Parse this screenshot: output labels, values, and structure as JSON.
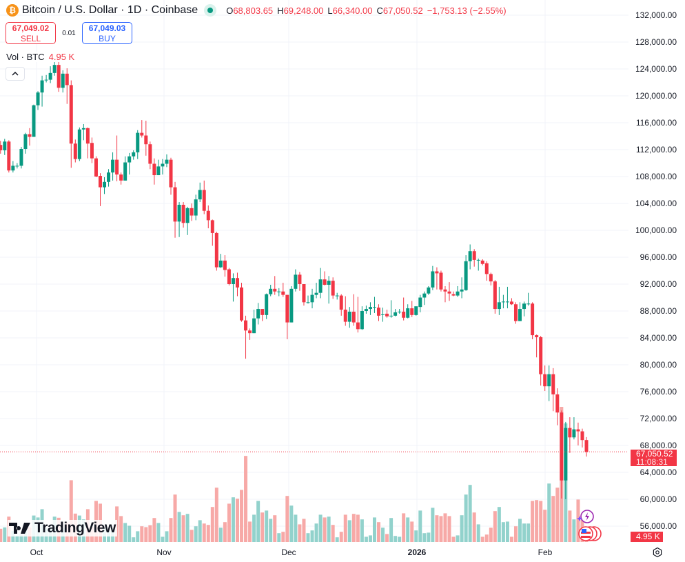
{
  "header": {
    "symbol_title": "Bitcoin / U.S. Dollar · 1D · Coinbase",
    "coin_glyph": "₿",
    "ohlc": [
      {
        "key": "O",
        "value": "68,803.65"
      },
      {
        "key": "H",
        "value": "69,248.00"
      },
      {
        "key": "L",
        "value": "66,340.00"
      },
      {
        "key": "C",
        "value": "67,050.52"
      }
    ],
    "change": "−1,753.13 (−2.55%)",
    "market_status": "open"
  },
  "trade": {
    "sell_price": "67,049.02",
    "sell_label": "SELL",
    "spread": "0.01",
    "buy_price": "67,049.03",
    "buy_label": "BUY"
  },
  "volume_legend": {
    "label": "Vol · BTC",
    "value": "4.95 K"
  },
  "price_badge": {
    "price": "67,050.52",
    "countdown": "11:08:31"
  },
  "volume_badge": "4.95 K",
  "logo_text": "TradingView",
  "icons": {
    "collapse": "chevron-up-icon",
    "settings": "settings-gear-icon",
    "events": [
      "lightning-event-icon",
      "us-flag-event-icon"
    ]
  },
  "colors": {
    "up": "#089981",
    "down": "#f23645",
    "up_volume": "#92d2cc",
    "down_volume": "#f7a9a7",
    "accent_buy": "#2962ff",
    "coin": "#f7931a"
  },
  "chart_data": {
    "type": "candlestick",
    "title": "Bitcoin / U.S. Dollar · 1D · Coinbase",
    "x_tick_labels": [
      "Oct",
      "Nov",
      "Dec",
      "2026",
      "Feb"
    ],
    "y_tick_labels": [
      "132,000.00",
      "128,000.00",
      "124,000.00",
      "120,000.00",
      "116,000.00",
      "112,000.00",
      "108,000.00",
      "104,000.00",
      "100,000.00",
      "96,000.00",
      "92,000.00",
      "88,000.00",
      "84,000.00",
      "80,000.00",
      "76,000.00",
      "72,000.00",
      "68,000.00",
      "64,000.00",
      "60,000.00",
      "56,000.00"
    ],
    "ylim": [
      56000,
      132000
    ],
    "grid": true,
    "last_price": 67050.52,
    "volume_unit": "K BTC",
    "fields": [
      "open",
      "high",
      "low",
      "close",
      "volume_k"
    ],
    "candles": [
      [
        115100,
        115500,
        112300,
        112700,
        8.8
      ],
      [
        112700,
        113300,
        111400,
        111900,
        4.8
      ],
      [
        111900,
        113600,
        111200,
        113200,
        5.3
      ],
      [
        113200,
        113400,
        108600,
        108900,
        9.2
      ],
      [
        108900,
        110300,
        108600,
        109600,
        4.0
      ],
      [
        109600,
        110000,
        109200,
        109600,
        2.3
      ],
      [
        109600,
        112400,
        109200,
        112100,
        2.8
      ],
      [
        112100,
        114500,
        111400,
        114300,
        5.8
      ],
      [
        114300,
        115200,
        112600,
        113900,
        5.3
      ],
      [
        113900,
        118700,
        113900,
        118600,
        9.6
      ],
      [
        118600,
        120700,
        117900,
        120500,
        8.9
      ],
      [
        120500,
        123000,
        118400,
        122300,
        11.9
      ],
      [
        122300,
        123100,
        122000,
        122400,
        5.0
      ],
      [
        122400,
        124400,
        121900,
        123400,
        5.0
      ],
      [
        123400,
        126200,
        123000,
        124600,
        9.2
      ],
      [
        124600,
        126100,
        120600,
        121200,
        8.8
      ],
      [
        121200,
        123800,
        120500,
        123300,
        5.0
      ],
      [
        123300,
        124100,
        118800,
        121600,
        7.1
      ],
      [
        121600,
        122300,
        109300,
        112900,
        22.4
      ],
      [
        112900,
        113500,
        110100,
        110600,
        10.3
      ],
      [
        110600,
        115300,
        110300,
        115000,
        9.6
      ],
      [
        115000,
        115800,
        113400,
        115200,
        8.2
      ],
      [
        115200,
        115300,
        110700,
        112900,
        11.9
      ],
      [
        113000,
        113800,
        110000,
        110700,
        5.4
      ],
      [
        110700,
        111000,
        107900,
        108000,
        14.9
      ],
      [
        108100,
        108500,
        103600,
        106400,
        13.9
      ],
      [
        106400,
        107900,
        105400,
        107200,
        5.0
      ],
      [
        107200,
        109100,
        106500,
        108600,
        4.0
      ],
      [
        108600,
        111600,
        107400,
        110500,
        5.0
      ],
      [
        110500,
        114100,
        107300,
        108300,
        12.9
      ],
      [
        108300,
        108600,
        106800,
        107400,
        9.4
      ],
      [
        107400,
        111000,
        107400,
        110100,
        6.9
      ],
      [
        110100,
        111500,
        108300,
        111000,
        5.9
      ],
      [
        111000,
        111900,
        110500,
        111600,
        1.7
      ],
      [
        111600,
        114900,
        110600,
        114500,
        3.9
      ],
      [
        114500,
        116400,
        113800,
        114100,
        5.7
      ],
      [
        114100,
        116300,
        111100,
        112800,
        5.4
      ],
      [
        112800,
        113200,
        109100,
        109900,
        6.1
      ],
      [
        109900,
        110700,
        106800,
        108200,
        8.7
      ],
      [
        108200,
        110500,
        108200,
        109500,
        6.9
      ],
      [
        109500,
        110600,
        108300,
        109900,
        1.9
      ],
      [
        109900,
        111300,
        109400,
        110500,
        3.9
      ],
      [
        110500,
        110800,
        105300,
        106400,
        8.7
      ],
      [
        106400,
        107200,
        98900,
        101300,
        17.2
      ],
      [
        101300,
        104200,
        99000,
        103800,
        10.9
      ],
      [
        103800,
        104200,
        100400,
        101100,
        9.7
      ],
      [
        101100,
        103500,
        99300,
        103300,
        10.2
      ],
      [
        103300,
        104000,
        101400,
        102200,
        4.4
      ],
      [
        102200,
        105300,
        101500,
        104600,
        5.7
      ],
      [
        104600,
        107100,
        104200,
        106000,
        7.9
      ],
      [
        106000,
        107400,
        102400,
        102900,
        6.7
      ],
      [
        102900,
        103700,
        100300,
        101500,
        6.2
      ],
      [
        101500,
        101600,
        97700,
        99600,
        12.7
      ],
      [
        99600,
        99800,
        94000,
        94500,
        19.7
      ],
      [
        94500,
        96500,
        94400,
        95500,
        5.2
      ],
      [
        95500,
        96300,
        93100,
        94100,
        7.2
      ],
      [
        94200,
        94400,
        91800,
        92000,
        13.9
      ],
      [
        92000,
        93600,
        89400,
        92900,
        16.2
      ],
      [
        92900,
        93700,
        90200,
        91500,
        15.7
      ],
      [
        91500,
        92200,
        86400,
        86600,
        18.9
      ],
      [
        86600,
        87300,
        80900,
        85100,
        31.2
      ],
      [
        85100,
        85400,
        83700,
        84700,
        7.4
      ],
      [
        84700,
        88200,
        84700,
        86900,
        9.9
      ],
      [
        86900,
        89200,
        86000,
        88300,
        14.9
      ],
      [
        88300,
        88300,
        86500,
        87400,
        10.7
      ],
      [
        87400,
        90600,
        86800,
        90500,
        11.4
      ],
      [
        90500,
        91900,
        90200,
        91300,
        8.4
      ],
      [
        91300,
        93200,
        90400,
        90900,
        9.7
      ],
      [
        90900,
        91400,
        90200,
        90900,
        3.2
      ],
      [
        90900,
        92200,
        90100,
        90400,
        3.7
      ],
      [
        90400,
        90400,
        83800,
        86300,
        16.7
      ],
      [
        86300,
        91700,
        86300,
        91300,
        13.2
      ],
      [
        91300,
        94200,
        90900,
        93400,
        9.9
      ],
      [
        93400,
        93800,
        91000,
        92000,
        6.4
      ],
      [
        92000,
        92000,
        88800,
        89300,
        8.4
      ],
      [
        89300,
        90300,
        89100,
        89300,
        3.2
      ],
      [
        89300,
        91300,
        88400,
        90400,
        4.2
      ],
      [
        90400,
        92200,
        89900,
        90700,
        6.7
      ],
      [
        90700,
        94400,
        89900,
        92700,
        9.9
      ],
      [
        92700,
        93900,
        91800,
        91900,
        8.9
      ],
      [
        91900,
        93200,
        89100,
        92500,
        9.2
      ],
      [
        92500,
        93000,
        89800,
        90300,
        6.2
      ],
      [
        90300,
        90700,
        89700,
        90300,
        1.7
      ],
      [
        90300,
        90500,
        87300,
        88200,
        3.7
      ],
      [
        88200,
        90200,
        85800,
        86400,
        9.9
      ],
      [
        86400,
        88600,
        85500,
        87900,
        7.9
      ],
      [
        87900,
        90500,
        85800,
        86300,
        10.2
      ],
      [
        86300,
        90100,
        84800,
        85300,
        9.9
      ],
      [
        85300,
        88700,
        85200,
        88000,
        8.2
      ],
      [
        88000,
        88800,
        87600,
        88300,
        1.9
      ],
      [
        88300,
        89300,
        87400,
        88600,
        2.4
      ],
      [
        88600,
        90100,
        87700,
        88600,
        8.9
      ],
      [
        88500,
        89000,
        86500,
        87300,
        7.2
      ],
      [
        87500,
        88500,
        86400,
        87500,
        5.2
      ],
      [
        87600,
        88200,
        87000,
        87200,
        2.9
      ],
      [
        87200,
        89600,
        87000,
        87300,
        8.7
      ],
      [
        87300,
        88300,
        87200,
        87800,
        2.2
      ],
      [
        87800,
        88300,
        87600,
        87900,
        1.9
      ],
      [
        87900,
        90000,
        86600,
        87000,
        10.4
      ],
      [
        87000,
        89000,
        86900,
        88400,
        8.9
      ],
      [
        88400,
        89500,
        87100,
        87400,
        7.4
      ],
      [
        87400,
        88600,
        87300,
        88700,
        4.2
      ],
      [
        88600,
        90400,
        87800,
        90000,
        11.4
      ],
      [
        90000,
        90900,
        88900,
        90600,
        3.2
      ],
      [
        90600,
        91700,
        90400,
        91500,
        3.4
      ],
      [
        91500,
        94700,
        91100,
        93900,
        12.4
      ],
      [
        93900,
        94500,
        91200,
        93600,
        9.7
      ],
      [
        93700,
        94000,
        90900,
        91200,
        9.4
      ],
      [
        91200,
        91700,
        89300,
        90900,
        10.4
      ],
      [
        90900,
        92300,
        89500,
        90600,
        9.4
      ],
      [
        90500,
        90900,
        90200,
        90300,
        1.9
      ],
      [
        90300,
        91700,
        90100,
        90900,
        2.4
      ],
      [
        90900,
        93000,
        89900,
        91200,
        9.7
      ],
      [
        91100,
        96300,
        91000,
        95400,
        17.2
      ],
      [
        95400,
        97900,
        94200,
        96900,
        20.7
      ],
      [
        96900,
        97200,
        94600,
        95600,
        10.7
      ],
      [
        95600,
        95800,
        94000,
        95600,
        6.4
      ],
      [
        95500,
        95700,
        94800,
        95000,
        1.9
      ],
      [
        95100,
        95400,
        92500,
        93500,
        2.7
      ],
      [
        93500,
        93700,
        91800,
        92400,
        5.2
      ],
      [
        92400,
        92600,
        87600,
        88300,
        11.2
      ],
      [
        88300,
        91600,
        87400,
        89300,
        12.7
      ],
      [
        89300,
        90400,
        88400,
        89400,
        7.2
      ],
      [
        89400,
        91600,
        88400,
        89400,
        7.4
      ],
      [
        89400,
        89900,
        88900,
        89000,
        1.9
      ],
      [
        89000,
        89300,
        86100,
        86500,
        5.7
      ],
      [
        86500,
        89300,
        86500,
        88300,
        8.4
      ],
      [
        88300,
        89400,
        87200,
        89100,
        6.7
      ],
      [
        89100,
        90700,
        88800,
        89100,
        6.7
      ],
      [
        89100,
        89300,
        83800,
        84400,
        14.9
      ],
      [
        84400,
        84500,
        81100,
        84100,
        15.2
      ],
      [
        84100,
        84300,
        76900,
        78600,
        14.9
      ],
      [
        78600,
        79900,
        76100,
        76800,
        11.7
      ],
      [
        76800,
        79900,
        74600,
        78600,
        21.2
      ],
      [
        78600,
        79500,
        73100,
        75600,
        16.7
      ],
      [
        75600,
        76500,
        71000,
        72900,
        19.7
      ],
      [
        72900,
        73200,
        60100,
        62800,
        49.0
      ],
      [
        62800,
        71500,
        60000,
        70600,
        43.0
      ],
      [
        70600,
        72200,
        66900,
        69200,
        11.4
      ],
      [
        69200,
        72200,
        68900,
        70400,
        8.2
      ],
      [
        70400,
        71400,
        68000,
        70100,
        15.4
      ],
      [
        70100,
        70500,
        67700,
        68800,
        8.0
      ],
      [
        68803.65,
        69248,
        66340,
        67050.52,
        4.95
      ]
    ]
  }
}
